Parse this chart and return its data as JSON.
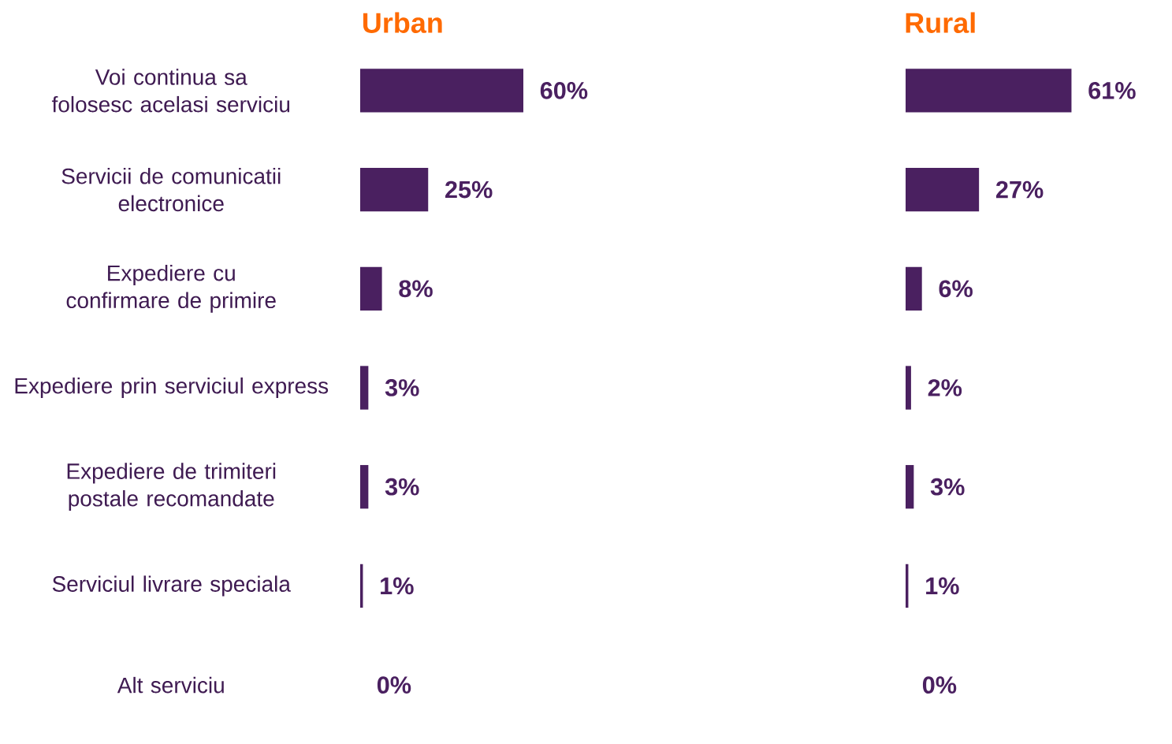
{
  "chart_data": [
    {
      "type": "bar",
      "orientation": "horizontal",
      "title": "Urban",
      "categories": [
        "Voi continua sa folosesc acelasi serviciu",
        "Servicii de comunicatii electronice",
        "Expediere cu confirmare de primire",
        "Expediere prin serviciul express",
        "Expediere de trimiteri postale recomandate",
        "Serviciul livrare speciala",
        "Alt serviciu"
      ],
      "values": [
        60,
        25,
        8,
        3,
        3,
        1,
        0
      ],
      "value_labels": [
        "60%",
        "25%",
        "8%",
        "3%",
        "3%",
        "1%",
        "0%"
      ],
      "color": "#4a2060",
      "tick_labels": "y"
    },
    {
      "type": "bar",
      "orientation": "horizontal",
      "title": "Rural",
      "categories": [
        null,
        null,
        null,
        null,
        null,
        null,
        null
      ],
      "values": [
        61,
        27,
        6,
        2,
        3,
        1,
        0
      ],
      "value_labels": [
        "61%",
        "27%",
        "6%",
        "2%",
        "3%",
        "1%",
        "0%"
      ],
      "color": "#4a2060",
      "tick_labels": false
    }
  ]
}
